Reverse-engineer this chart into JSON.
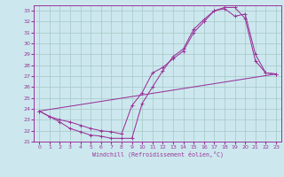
{
  "xlabel": "Windchill (Refroidissement éolien,°C)",
  "bg_color": "#cce8ee",
  "grid_color": "#aacccc",
  "line_color": "#993399",
  "xlim": [
    -0.5,
    23.5
  ],
  "ylim": [
    21,
    33.5
  ],
  "xticks": [
    0,
    1,
    2,
    3,
    4,
    5,
    6,
    7,
    8,
    9,
    10,
    11,
    12,
    13,
    14,
    15,
    16,
    17,
    18,
    19,
    20,
    21,
    22,
    23
  ],
  "yticks": [
    21,
    22,
    23,
    24,
    25,
    26,
    27,
    28,
    29,
    30,
    31,
    32,
    33
  ],
  "line1_x": [
    0,
    1,
    2,
    3,
    4,
    5,
    6,
    7,
    8,
    9,
    10,
    11,
    12,
    13,
    14,
    15,
    16,
    17,
    18,
    19,
    20,
    21,
    22,
    23
  ],
  "line1_y": [
    23.8,
    23.3,
    22.8,
    22.2,
    21.9,
    21.6,
    21.5,
    21.3,
    21.3,
    21.3,
    24.5,
    26.0,
    27.5,
    28.8,
    29.5,
    31.3,
    32.2,
    33.0,
    33.2,
    32.5,
    32.7,
    29.0,
    27.3,
    27.2
  ],
  "line2_x": [
    0,
    1,
    2,
    3,
    4,
    5,
    6,
    7,
    8,
    9,
    10,
    11,
    12,
    13,
    14,
    15,
    16,
    17,
    18,
    19,
    20,
    21,
    22,
    23
  ],
  "line2_y": [
    23.8,
    23.3,
    23.0,
    22.8,
    22.5,
    22.2,
    22.0,
    21.9,
    21.7,
    24.3,
    25.5,
    27.3,
    27.8,
    28.6,
    29.3,
    31.0,
    32.0,
    33.0,
    33.3,
    33.3,
    32.3,
    28.4,
    27.3,
    27.2
  ],
  "line3_x": [
    0,
    23
  ],
  "line3_y": [
    23.8,
    27.2
  ]
}
